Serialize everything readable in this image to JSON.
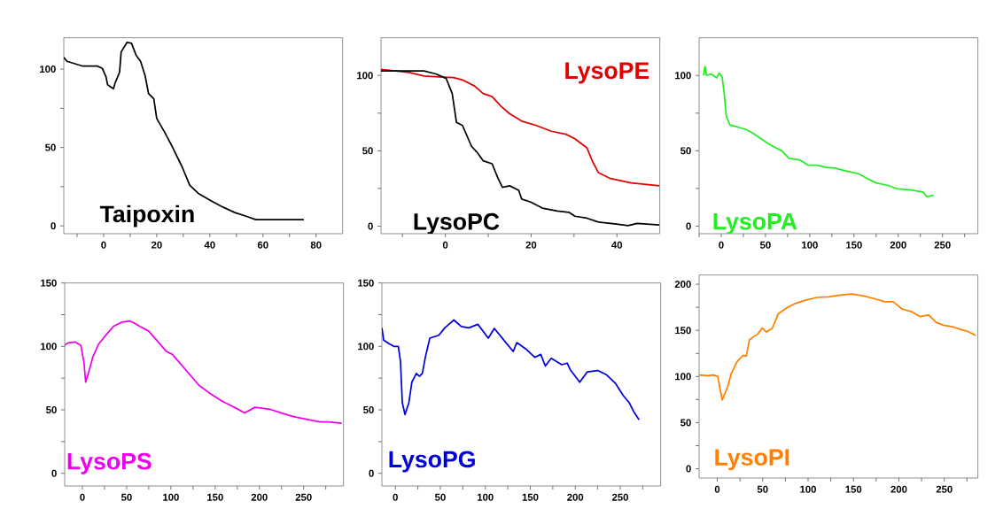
{
  "chart_data": [
    {
      "type": "line",
      "xlim": [
        -15,
        90
      ],
      "ylim": [
        -5,
        120
      ],
      "xticks": [
        {
          "value": -10,
          "label": null
        },
        0,
        {
          "value": 10,
          "label": null
        },
        20,
        {
          "value": 30,
          "label": null
        },
        40,
        {
          "value": 50,
          "label": null
        },
        60,
        {
          "value": 70,
          "label": null
        },
        80
      ],
      "yticks": [
        0,
        {
          "value": 25,
          "label": null
        },
        50,
        {
          "value": 75,
          "label": null
        },
        100
      ],
      "series": [
        {
          "name": "Taipoxin",
          "color": "#000000",
          "x": [
            -15,
            -13.8,
            -8.1,
            -2.5,
            -0.5,
            0.9,
            1.5,
            3.7,
            4.3,
            6,
            6.6,
            8.8,
            10.5,
            12.2,
            13.9,
            15.6,
            16.9,
            18.9,
            20,
            22.9,
            25.7,
            29.6,
            32.4,
            35.8,
            40.4,
            44.9,
            49.4,
            53.9,
            57.3,
            60.7,
            66.4,
            72,
            75.4
          ],
          "values": [
            107.5,
            105,
            102,
            102,
            100.5,
            95,
            90,
            87.5,
            91,
            98,
            111,
            117,
            116.5,
            109,
            105,
            96,
            84.5,
            81,
            68.5,
            60,
            51,
            37.5,
            26,
            20.5,
            16,
            12,
            8.5,
            6,
            4,
            4,
            4,
            4,
            4
          ]
        }
      ]
    },
    {
      "type": "line",
      "xlim": [
        -15,
        50
      ],
      "ylim": [
        -5,
        125
      ],
      "xticks": [
        {
          "value": -10,
          "label": null
        },
        0,
        {
          "value": 10,
          "label": null
        },
        20,
        {
          "value": 30,
          "label": null
        },
        40
      ],
      "yticks": [
        0,
        {
          "value": 25,
          "label": null
        },
        50,
        {
          "value": 75,
          "label": null
        },
        100
      ],
      "series": [
        {
          "name": "LysoPE",
          "color": "#e00000",
          "x": [
            -15,
            -8.4,
            -5,
            -1.5,
            1.9,
            4,
            6.8,
            8.8,
            10.9,
            13,
            15,
            17.8,
            21.2,
            24.7,
            28.1,
            30.2,
            33,
            34.3,
            35.7,
            38.5,
            43.3,
            49.9
          ],
          "values": [
            104,
            102,
            99.6,
            99,
            98.6,
            97,
            93,
            88,
            86,
            79.5,
            74.6,
            69.7,
            66.8,
            63,
            61,
            58,
            52,
            43,
            35.5,
            31.6,
            28.7,
            26.8
          ]
        },
        {
          "name": "LysoPC",
          "color": "#000000",
          "x": [
            -15,
            -11.2,
            -5,
            -2.2,
            0.2,
            1.6,
            2.6,
            4,
            6.1,
            7.4,
            8.8,
            10.9,
            12.3,
            13.3,
            15,
            17.1,
            17.8,
            19.9,
            22.6,
            26.1,
            28.8,
            30.2,
            33,
            35.7,
            39.9,
            42.6,
            44.7,
            49.9
          ],
          "values": [
            103,
            103,
            103,
            101,
            98,
            88,
            68.8,
            66.8,
            53,
            49,
            43.4,
            41.4,
            31.6,
            25.8,
            26.8,
            23.8,
            18,
            16,
            12,
            10,
            9.2,
            6.6,
            5.3,
            2.7,
            1.4,
            0.4,
            1.8,
            0.8
          ]
        }
      ]
    },
    {
      "type": "line",
      "xlim": [
        -25,
        290
      ],
      "ylim": [
        -5,
        125
      ],
      "xticks": [
        {
          "value": -25,
          "label": null
        },
        0,
        {
          "value": 25,
          "label": null
        },
        50,
        {
          "value": 75,
          "label": null
        },
        100,
        {
          "value": 125,
          "label": null
        },
        150,
        {
          "value": 175,
          "label": null
        },
        200,
        {
          "value": 225,
          "label": null
        },
        250,
        {
          "value": 275,
          "label": null
        }
      ],
      "yticks": [
        0,
        {
          "value": 25,
          "label": null
        },
        50,
        {
          "value": 75,
          "label": null
        },
        100
      ],
      "series": [
        {
          "name": "LysoPA",
          "color": "#22ee22",
          "x": [
            -20,
            -18.3,
            -16.6,
            -11.6,
            -5,
            -2.3,
            1,
            3.4,
            5.7,
            10,
            18.4,
            28.4,
            35,
            45,
            55,
            68.4,
            76.7,
            88.4,
            98.4,
            108.4,
            118.4,
            128.4,
            141.7,
            155,
            165,
            175,
            188.4,
            198.4,
            215,
            228.4,
            232.4,
            240
          ],
          "values": [
            100,
            106,
            100,
            101,
            98.4,
            101.6,
            99,
            88,
            73,
            67,
            65.8,
            64,
            62,
            58,
            54,
            50,
            45,
            44,
            40.4,
            40.4,
            39,
            38.5,
            36.5,
            34.8,
            31.6,
            28.7,
            27,
            24.8,
            24,
            22.5,
            19.5,
            20.5
          ]
        }
      ]
    },
    {
      "type": "line",
      "xlim": [
        -20,
        295
      ],
      "ylim": [
        -10,
        150
      ],
      "xticks": [
        0,
        {
          "value": 25,
          "label": null
        },
        50,
        {
          "value": 75,
          "label": null
        },
        100,
        {
          "value": 125,
          "label": null
        },
        150,
        {
          "value": 175,
          "label": null
        },
        200,
        {
          "value": 225,
          "label": null
        },
        250,
        {
          "value": 275,
          "label": null
        }
      ],
      "yticks": [
        0,
        {
          "value": 25,
          "label": null
        },
        50,
        {
          "value": 75,
          "label": null
        },
        100,
        {
          "value": 125,
          "label": null
        },
        150
      ],
      "series": [
        {
          "name": "LysoPS",
          "color": "#ee00ee",
          "x": [
            -20,
            -18.3,
            -15,
            -8.3,
            -1.7,
            1.7,
            3.7,
            6.7,
            11.7,
            18.3,
            25,
            35,
            45,
            53.3,
            58.3,
            65,
            75,
            85,
            95,
            101.7,
            111.7,
            121.7,
            131.7,
            145,
            158.3,
            171.7,
            183.3,
            195,
            211.7,
            225,
            238.3,
            251.7,
            268.3,
            278.3,
            293
          ],
          "values": [
            100.7,
            102,
            103,
            103.5,
            100.7,
            88,
            71.8,
            78.7,
            91.4,
            101.8,
            107.6,
            115.7,
            119.2,
            120,
            118.5,
            115.7,
            112,
            104,
            96,
            93.7,
            85.6,
            77.5,
            69.4,
            62.5,
            56.7,
            52,
            47.5,
            52,
            50.5,
            47.5,
            44.7,
            42.8,
            40.5,
            40.5,
            39.4
          ]
        }
      ]
    },
    {
      "type": "line",
      "xlim": [
        -15,
        295
      ],
      "ylim": [
        -10,
        150
      ],
      "xticks": [
        0,
        {
          "value": 25,
          "label": null
        },
        50,
        {
          "value": 75,
          "label": null
        },
        100,
        {
          "value": 125,
          "label": null
        },
        150,
        {
          "value": 175,
          "label": null
        },
        200,
        {
          "value": 225,
          "label": null
        },
        250,
        {
          "value": 275,
          "label": null
        }
      ],
      "yticks": [
        0,
        {
          "value": 25,
          "label": null
        },
        50,
        {
          "value": 75,
          "label": null
        },
        100,
        {
          "value": 125,
          "label": null
        },
        150
      ],
      "series": [
        {
          "name": "LysoPG",
          "color": "#0000dd",
          "x": [
            -15,
            -13,
            -6.7,
            -1.7,
            3.3,
            5.7,
            7.7,
            10.7,
            15,
            18.3,
            23.3,
            26.7,
            30,
            33.3,
            38.3,
            48.3,
            55,
            65,
            73.3,
            81.7,
            91.7,
            103.3,
            110,
            121.7,
            131,
            135,
            145,
            155,
            161.7,
            166.7,
            173.3,
            185,
            191,
            195,
            205,
            213.3,
            225,
            235,
            245,
            253.3,
            260,
            265,
            271
          ],
          "values": [
            114.6,
            105,
            102,
            100,
            100,
            88,
            55.6,
            46.3,
            55.6,
            71.8,
            78.7,
            76.4,
            78.7,
            91.4,
            106.5,
            108.8,
            114.6,
            120.8,
            115.7,
            114.6,
            117.4,
            106.5,
            114.2,
            104,
            96,
            103,
            98,
            91.4,
            93.7,
            84.5,
            90.7,
            85.6,
            86.8,
            81,
            71.8,
            79.9,
            81,
            77.5,
            70.6,
            61.3,
            55.6,
            48.6,
            42.1
          ]
        }
      ]
    },
    {
      "type": "line",
      "xlim": [
        -20,
        287
      ],
      "ylim": [
        -10,
        210
      ],
      "xticks": [
        0,
        {
          "value": 25,
          "label": null
        },
        50,
        {
          "value": 75,
          "label": null
        },
        100,
        {
          "value": 125,
          "label": null
        },
        150,
        {
          "value": 175,
          "label": null
        },
        200,
        {
          "value": 225,
          "label": null
        },
        250,
        {
          "value": 275,
          "label": null
        }
      ],
      "yticks": [
        0,
        {
          "value": 25,
          "label": null
        },
        50,
        {
          "value": 75,
          "label": null
        },
        100,
        {
          "value": 125,
          "label": null
        },
        150,
        {
          "value": 175,
          "label": null
        },
        200
      ],
      "series": [
        {
          "name": "LysoPI",
          "color": "#ff7f00",
          "x": [
            -20,
            -10.7,
            -4.2,
            0.6,
            2.9,
            5.5,
            8.8,
            12,
            15.3,
            21.8,
            28.2,
            32,
            35.4,
            39.6,
            44.5,
            49.4,
            54.2,
            60.7,
            67.2,
            77,
            86.7,
            96.4,
            109.4,
            122.4,
            135.4,
            148.4,
            161.4,
            174.4,
            184,
            193.8,
            203.6,
            213.3,
            223,
            232.8,
            241,
            249,
            258.8,
            268.5,
            275,
            284.7
          ],
          "values": [
            101.6,
            101,
            101.6,
            100,
            87.3,
            74.6,
            82.5,
            90.5,
            103,
            116,
            122.9,
            122,
            139.7,
            142.9,
            146,
            152.4,
            148.3,
            152.4,
            168,
            174.6,
            179.4,
            182.5,
            185.7,
            186.3,
            188.3,
            189.5,
            187.3,
            184,
            181,
            181,
            173,
            170.5,
            165,
            166.7,
            158.7,
            155.6,
            154,
            150.8,
            149.2,
            144.4
          ]
        }
      ]
    }
  ]
}
